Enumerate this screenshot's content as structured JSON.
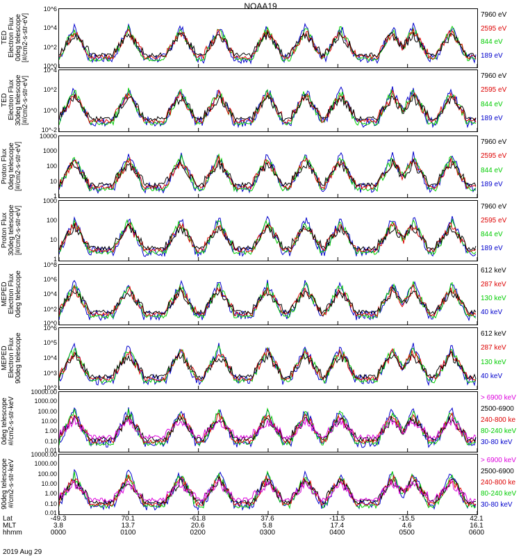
{
  "title": "NOAA19",
  "panels": [
    {
      "ylabel": "TED\nElectron Flux\n0deg telescope\n[#/cm2-s-str-eV]",
      "yticks": [
        "10^6",
        "10^4",
        "10^2",
        "10^0"
      ],
      "legend": [
        {
          "t": "7960 eV",
          "c": "#000000"
        },
        {
          "t": "2595 eV",
          "c": "#dd0000"
        },
        {
          "t": "844 eV",
          "c": "#00cc00"
        },
        {
          "t": "189 eV",
          "c": "#0000cc"
        }
      ]
    },
    {
      "ylabel": "TED\nElectron Flux\n30deg telescope\n[#/cm2-s-str-eV]",
      "yticks": [
        "10^4",
        "10^2",
        "10^0",
        "10^-2"
      ],
      "legend": [
        {
          "t": "7960 eV",
          "c": "#000000"
        },
        {
          "t": "2595 eV",
          "c": "#dd0000"
        },
        {
          "t": "844 eV",
          "c": "#00cc00"
        },
        {
          "t": "189 eV",
          "c": "#0000cc"
        }
      ]
    },
    {
      "ylabel": "Proton Flux\n0deg telescope\n[#/cm2-s-str-eV]",
      "yticks": [
        "10000",
        "1000",
        "100",
        "10",
        "1"
      ],
      "legend": [
        {
          "t": "7960 eV",
          "c": "#000000"
        },
        {
          "t": "2595 eV",
          "c": "#dd0000"
        },
        {
          "t": "844 eV",
          "c": "#00cc00"
        },
        {
          "t": "189 eV",
          "c": "#0000cc"
        }
      ]
    },
    {
      "ylabel": "Proton Flux\n30deg telescope\n[#/cm2-s-str-eV]",
      "yticks": [
        "1000",
        "100",
        "10",
        "1"
      ],
      "legend": [
        {
          "t": "7960 eV",
          "c": "#000000"
        },
        {
          "t": "2595 eV",
          "c": "#dd0000"
        },
        {
          "t": "844 eV",
          "c": "#00cc00"
        },
        {
          "t": "189 eV",
          "c": "#0000cc"
        }
      ]
    },
    {
      "ylabel": "MEPED\nElectron Flux\n0deg telescope",
      "yticks": [
        "10^8",
        "10^6",
        "10^4",
        "10^2",
        "10^0"
      ],
      "legend": [
        {
          "t": "612 keV",
          "c": "#000000"
        },
        {
          "t": "287 keV",
          "c": "#dd0000"
        },
        {
          "t": "130 keV",
          "c": "#00cc00"
        },
        {
          "t": "40 keV",
          "c": "#0000cc"
        }
      ]
    },
    {
      "ylabel": "MEPED\nElectron Flux\n90deg telescope",
      "yticks": [
        "10^6",
        "10^5",
        "10^4",
        "10^3",
        "10^2"
      ],
      "legend": [
        {
          "t": "612 keV",
          "c": "#000000"
        },
        {
          "t": "287 keV",
          "c": "#dd0000"
        },
        {
          "t": "130 keV",
          "c": "#00cc00"
        },
        {
          "t": "40 keV",
          "c": "#0000cc"
        }
      ]
    },
    {
      "ylabel": "0deg telescope\n#/cm2-s-str-keV",
      "yticks": [
        "10000.00",
        "1000.00",
        "100.00",
        "10.00",
        "1.00",
        "0.10",
        "0.01"
      ],
      "legend": [
        {
          "t": "> 6900 keV",
          "c": "#dd00dd"
        },
        {
          "t": "2500-6900",
          "c": "#000000"
        },
        {
          "t": "240-800 ke",
          "c": "#dd0000"
        },
        {
          "t": "80-240 keV",
          "c": "#00cc00"
        },
        {
          "t": "30-80 keV",
          "c": "#0000cc"
        }
      ]
    },
    {
      "ylabel": "90deg telescope\n#/cm2-s-str-keV",
      "yticks": [
        "10000.00",
        "1000.00",
        "100.00",
        "10.00",
        "1.00",
        "0.10",
        "0.01"
      ],
      "legend": [
        {
          "t": "> 6900 keV",
          "c": "#dd00dd"
        },
        {
          "t": "2500-6900",
          "c": "#000000"
        },
        {
          "t": "240-800 ke",
          "c": "#dd0000"
        },
        {
          "t": "80-240 keV",
          "c": "#00cc00"
        },
        {
          "t": "30-80 keV",
          "c": "#0000cc"
        }
      ]
    }
  ],
  "footer": {
    "row_labels": [
      "Lat",
      "MLT",
      "hhmm"
    ],
    "columns": [
      {
        "lat": "-49.3",
        "mlt": "3.8",
        "hhmm": "0000"
      },
      {
        "lat": "70.1",
        "mlt": "13.7",
        "hhmm": "0100"
      },
      {
        "lat": "-61.8",
        "mlt": "20.6",
        "hhmm": "0200"
      },
      {
        "lat": "37.6",
        "mlt": "5.8",
        "hhmm": "0300"
      },
      {
        "lat": "-11.5",
        "mlt": "17.4",
        "hhmm": "0400"
      },
      {
        "lat": "-15.5",
        "mlt": "4.6",
        "hhmm": "0500"
      },
      {
        "lat": "42.1",
        "mlt": "16.1",
        "hhmm": "0600"
      }
    ],
    "date": "2019 Aug 29"
  },
  "chart_data": {
    "type": "line",
    "title": "NOAA19",
    "x": [
      "0000",
      "0100",
      "0200",
      "0300",
      "0400",
      "0500",
      "0600"
    ],
    "xlabel": "hhmm",
    "passes_hhmm": [
      "0010",
      "0050",
      "0130",
      "0200",
      "0230",
      "0300",
      "0325",
      "0400",
      "0430",
      "0450",
      "0515",
      "0545"
    ],
    "series_groups": [
      {
        "panel": "TED Electron Flux 0deg telescope",
        "series": [
          "7960 eV",
          "2595 eV",
          "844 eV",
          "189 eV"
        ],
        "ylim": [
          1,
          1000000
        ],
        "log": true
      },
      {
        "panel": "TED Electron Flux 30deg telescope",
        "series": [
          "7960 eV",
          "2595 eV",
          "844 eV",
          "189 eV"
        ],
        "ylim": [
          0.01,
          10000
        ],
        "log": true
      },
      {
        "panel": "Proton Flux 0deg telescope",
        "series": [
          "7960 eV",
          "2595 eV",
          "844 eV",
          "189 eV"
        ],
        "ylim": [
          1,
          10000
        ],
        "log": true
      },
      {
        "panel": "Proton Flux 30deg telescope",
        "series": [
          "7960 eV",
          "2595 eV",
          "844 eV",
          "189 eV"
        ],
        "ylim": [
          1,
          1000
        ],
        "log": true
      },
      {
        "panel": "MEPED Electron Flux 0deg telescope",
        "series": [
          "612 keV",
          "287 keV",
          "130 keV",
          "40 keV"
        ],
        "ylim": [
          1,
          100000000
        ],
        "log": true
      },
      {
        "panel": "MEPED Electron Flux 90deg telescope",
        "series": [
          "612 keV",
          "287 keV",
          "130 keV",
          "40 keV"
        ],
        "ylim": [
          100,
          1000000
        ],
        "log": true
      },
      {
        "panel": "0deg telescope",
        "series": [
          "> 6900 keV",
          "2500-6900",
          "240-800 ke",
          "80-240 keV",
          "30-80 keV"
        ],
        "ylim": [
          0.01,
          10000
        ],
        "log": true
      },
      {
        "panel": "90deg telescope",
        "series": [
          "> 6900 keV",
          "2500-6900",
          "240-800 ke",
          "80-240 keV",
          "30-80 keV"
        ],
        "ylim": [
          0.01,
          10000
        ],
        "log": true
      }
    ]
  }
}
